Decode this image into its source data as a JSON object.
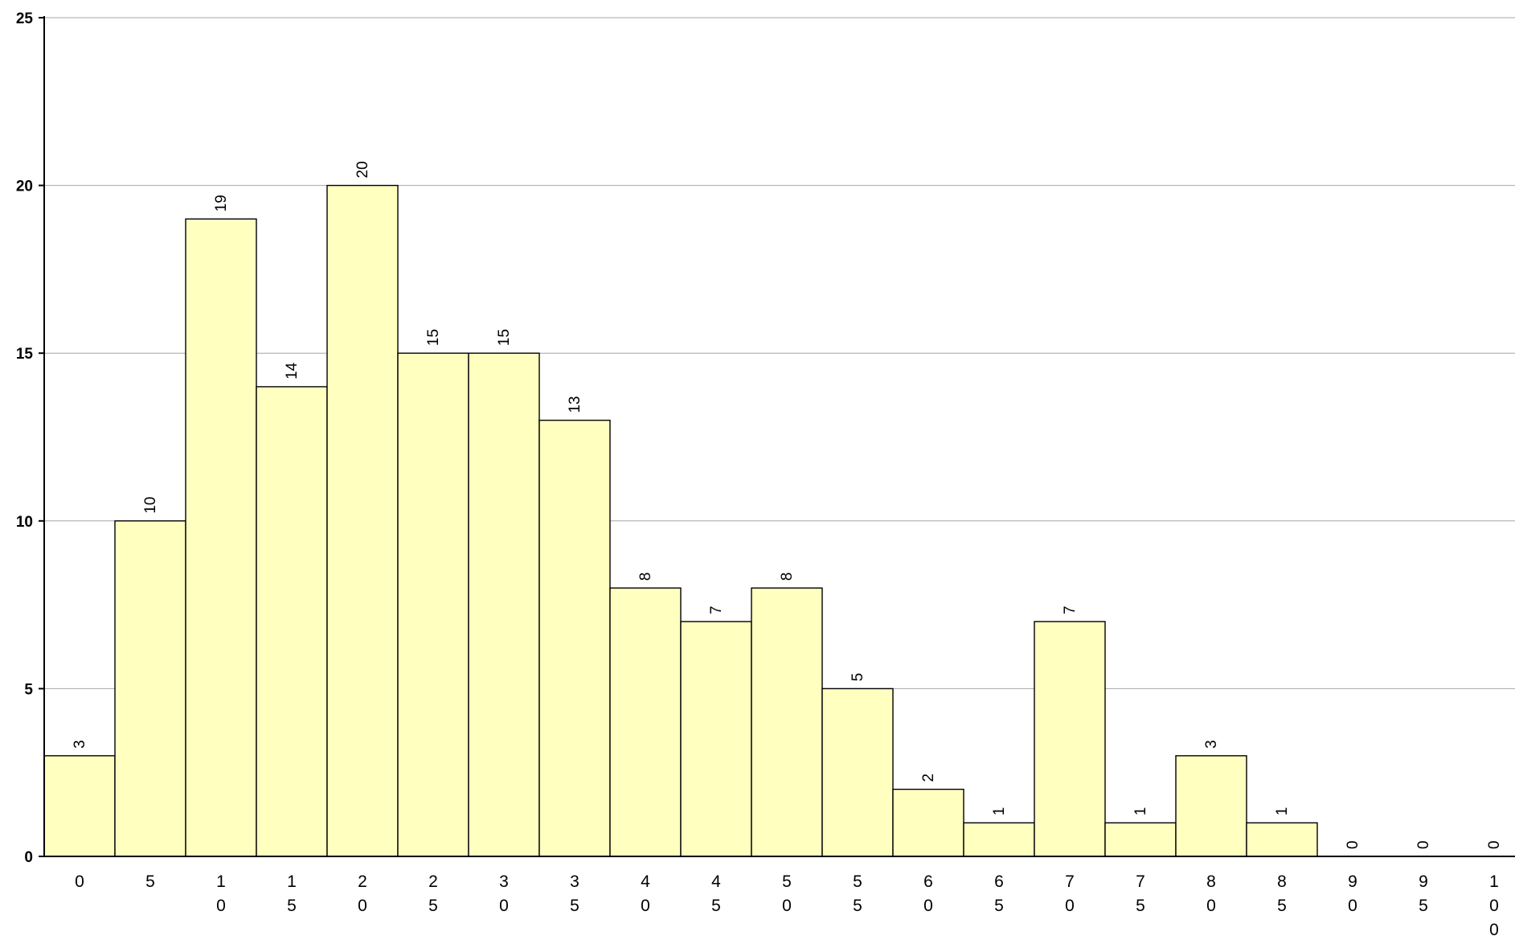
{
  "chart_data": {
    "type": "bar",
    "title": "",
    "xlabel": "",
    "ylabel": "",
    "categories": [
      "0",
      "5",
      "10",
      "15",
      "20",
      "25",
      "30",
      "35",
      "40",
      "45",
      "50",
      "55",
      "60",
      "65",
      "70",
      "75",
      "80",
      "85",
      "90",
      "95",
      "100"
    ],
    "values": [
      3,
      10,
      19,
      14,
      20,
      15,
      15,
      13,
      8,
      7,
      8,
      5,
      2,
      1,
      7,
      1,
      3,
      1,
      0,
      0,
      0
    ],
    "data_labels": [
      "3",
      "10",
      "19",
      "14",
      "20",
      "15",
      "15",
      "13",
      "8",
      "7",
      "8",
      "5",
      "2",
      "1",
      "7",
      "1",
      "3",
      "1",
      "0",
      "0",
      "0"
    ],
    "yticks": [
      "0",
      "5",
      "10",
      "15",
      "20",
      "25"
    ],
    "ylim": [
      0,
      25
    ],
    "ytick_step": 5,
    "grid": true,
    "legend": "none",
    "colors": {
      "bar_fill": "#ffffc0",
      "bar_edge": "#000000",
      "grid": "#a6a6a6",
      "axis": "#000000"
    }
  }
}
